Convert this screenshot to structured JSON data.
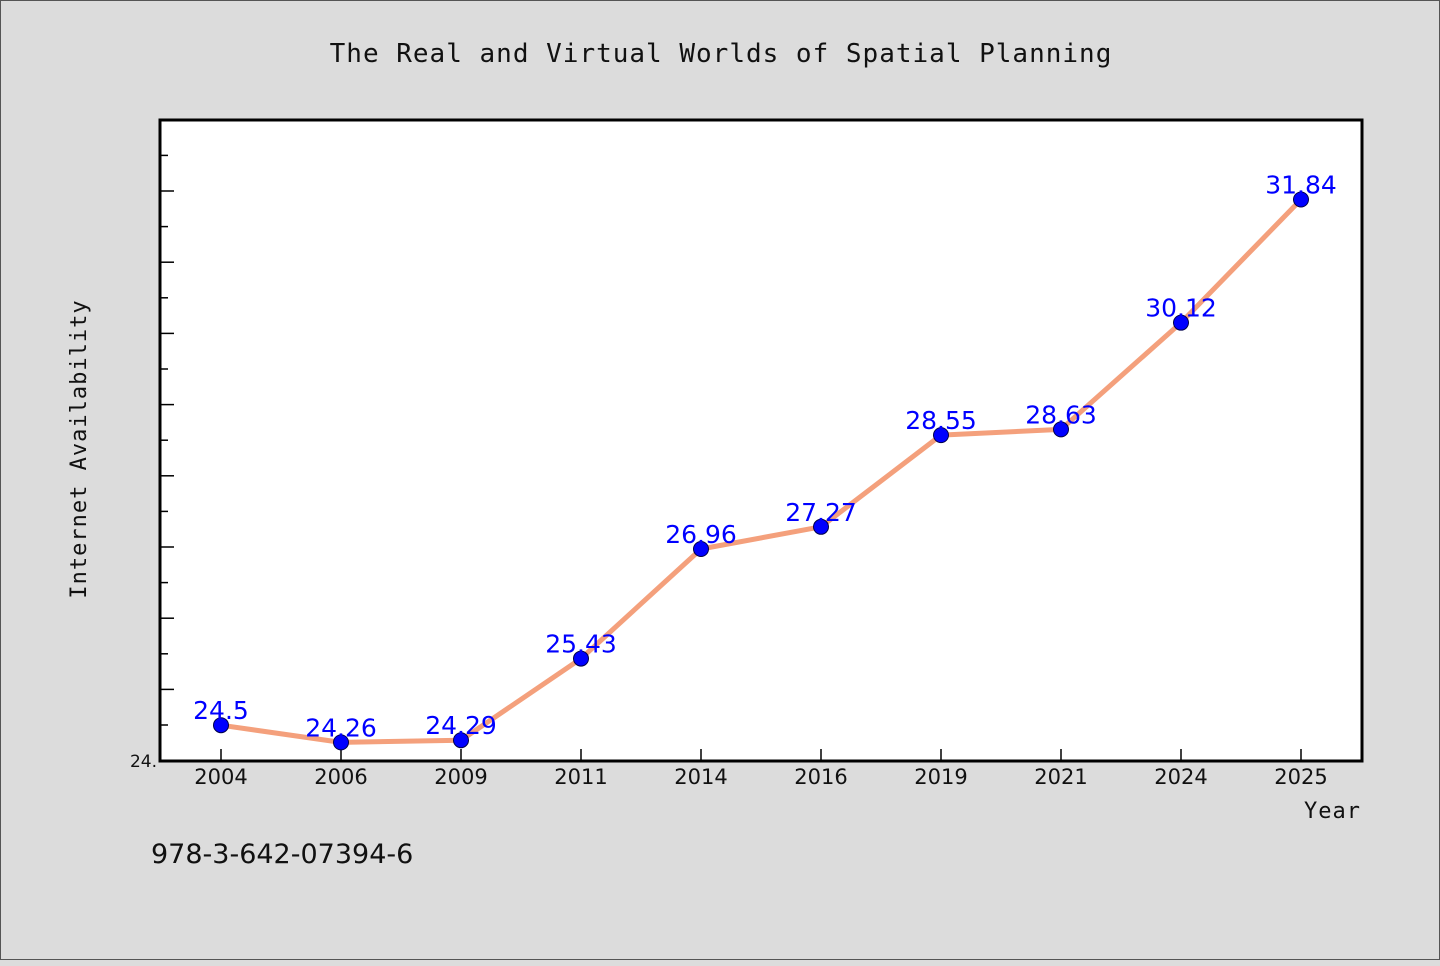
{
  "chart_data": {
    "type": "line",
    "title": "The Real and Virtual Worlds of Spatial Planning",
    "xlabel": "Year",
    "ylabel": "Internet Availability",
    "categories": [
      "2004",
      "2006",
      "2009",
      "2011",
      "2014",
      "2016",
      "2019",
      "2021",
      "2024",
      "2025"
    ],
    "series": [
      {
        "values": [
          24.5,
          24.26,
          24.29,
          25.43,
          26.96,
          27.27,
          28.55,
          28.63,
          30.12,
          31.84
        ],
        "value_labels": [
          "24.5",
          "24.26",
          "24.29",
          "25.43",
          "26.96",
          "27.27",
          "28.55",
          "28.63",
          "30.12",
          "31.84"
        ]
      }
    ],
    "y_tick_labels": [
      "24."
    ],
    "ylim": [
      24.0,
      32.95
    ],
    "grid": false,
    "line_color": "#f4a07c",
    "marker_color": "#0000ff",
    "label_color": "#0000ff"
  },
  "footer": {
    "isbn": "978-3-642-07394-6"
  }
}
